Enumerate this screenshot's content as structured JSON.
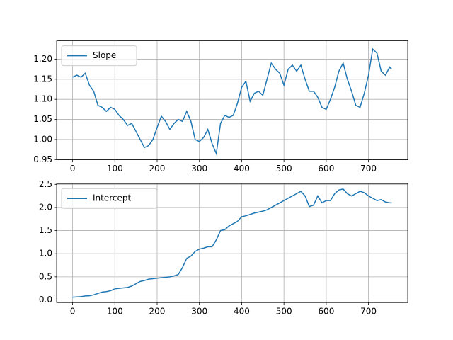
{
  "chart_data": [
    {
      "type": "line",
      "grid": true,
      "legend": "upper left",
      "xlim": [
        -37.75,
        792.75
      ],
      "xticks": [
        0,
        100,
        200,
        300,
        400,
        500,
        600,
        700
      ],
      "ylim": [
        0.9495,
        1.2455
      ],
      "yticks": [
        0.95,
        {
          "value": 1.0,
          "label": "1.00"
        },
        1.05,
        {
          "value": 1.1,
          "label": "1.10"
        },
        1.15,
        {
          "value": 1.2,
          "label": "1.20"
        }
      ],
      "x": [
        0,
        10,
        20,
        30,
        40,
        50,
        60,
        70,
        80,
        90,
        100,
        110,
        120,
        130,
        140,
        150,
        160,
        170,
        180,
        190,
        200,
        210,
        220,
        230,
        240,
        250,
        260,
        270,
        280,
        290,
        300,
        310,
        320,
        330,
        340,
        350,
        360,
        370,
        380,
        390,
        400,
        410,
        420,
        430,
        440,
        450,
        460,
        470,
        480,
        490,
        500,
        510,
        520,
        530,
        540,
        550,
        560,
        570,
        580,
        590,
        600,
        610,
        620,
        630,
        640,
        650,
        660,
        670,
        680,
        690,
        700,
        710,
        720,
        730,
        740,
        750,
        755
      ],
      "series": [
        {
          "name": "Slope",
          "color": "#1f77b4",
          "values": [
            1.155,
            1.16,
            1.155,
            1.165,
            1.135,
            1.12,
            1.085,
            1.08,
            1.07,
            1.08,
            1.075,
            1.06,
            1.05,
            1.035,
            1.04,
            1.02,
            1.0,
            0.98,
            0.985,
            1.0,
            1.03,
            1.058,
            1.045,
            1.025,
            1.04,
            1.05,
            1.045,
            1.07,
            1.045,
            1.0,
            0.995,
            1.005,
            1.025,
            0.99,
            0.965,
            1.04,
            1.06,
            1.055,
            1.06,
            1.09,
            1.13,
            1.145,
            1.095,
            1.115,
            1.12,
            1.11,
            1.15,
            1.19,
            1.175,
            1.165,
            1.135,
            1.175,
            1.185,
            1.17,
            1.185,
            1.15,
            1.12,
            1.12,
            1.105,
            1.08,
            1.075,
            1.1,
            1.13,
            1.17,
            1.19,
            1.15,
            1.12,
            1.085,
            1.08,
            1.115,
            1.16,
            1.225,
            1.215,
            1.17,
            1.16,
            1.18,
            1.175
          ]
        }
      ]
    },
    {
      "type": "line",
      "grid": true,
      "legend": "upper left",
      "xlim": [
        -37.75,
        792.75
      ],
      "xticks": [
        0,
        100,
        200,
        300,
        400,
        500,
        600,
        700
      ],
      "ylim": [
        -0.057,
        2.517
      ],
      "yticks": [
        {
          "value": 0.0,
          "label": "0.0"
        },
        0.5,
        {
          "value": 1.0,
          "label": "1.0"
        },
        1.5,
        {
          "value": 2.0,
          "label": "2.0"
        },
        2.5
      ],
      "x": [
        0,
        10,
        20,
        30,
        40,
        50,
        60,
        70,
        80,
        90,
        100,
        110,
        120,
        130,
        140,
        150,
        160,
        170,
        180,
        190,
        200,
        210,
        220,
        230,
        240,
        250,
        260,
        270,
        280,
        290,
        300,
        310,
        320,
        330,
        340,
        350,
        360,
        370,
        380,
        390,
        400,
        410,
        420,
        430,
        440,
        450,
        460,
        470,
        480,
        490,
        500,
        510,
        520,
        530,
        540,
        550,
        560,
        570,
        580,
        590,
        600,
        610,
        620,
        630,
        640,
        650,
        660,
        670,
        680,
        690,
        700,
        710,
        720,
        730,
        740,
        750,
        755
      ],
      "series": [
        {
          "name": "Intercept",
          "color": "#1f77b4",
          "values": [
            0.06,
            0.065,
            0.07,
            0.085,
            0.09,
            0.11,
            0.14,
            0.17,
            0.18,
            0.2,
            0.24,
            0.25,
            0.26,
            0.27,
            0.3,
            0.35,
            0.4,
            0.42,
            0.45,
            0.46,
            0.47,
            0.48,
            0.49,
            0.5,
            0.52,
            0.55,
            0.7,
            0.9,
            0.95,
            1.05,
            1.1,
            1.12,
            1.15,
            1.15,
            1.3,
            1.5,
            1.52,
            1.6,
            1.65,
            1.7,
            1.8,
            1.82,
            1.85,
            1.88,
            1.9,
            1.92,
            1.95,
            2.0,
            2.05,
            2.1,
            2.15,
            2.2,
            2.25,
            2.3,
            2.35,
            2.25,
            2.02,
            2.05,
            2.25,
            2.1,
            2.15,
            2.15,
            2.3,
            2.38,
            2.4,
            2.3,
            2.25,
            2.3,
            2.35,
            2.32,
            2.25,
            2.2,
            2.15,
            2.17,
            2.12,
            2.1,
            2.1
          ]
        }
      ]
    }
  ]
}
